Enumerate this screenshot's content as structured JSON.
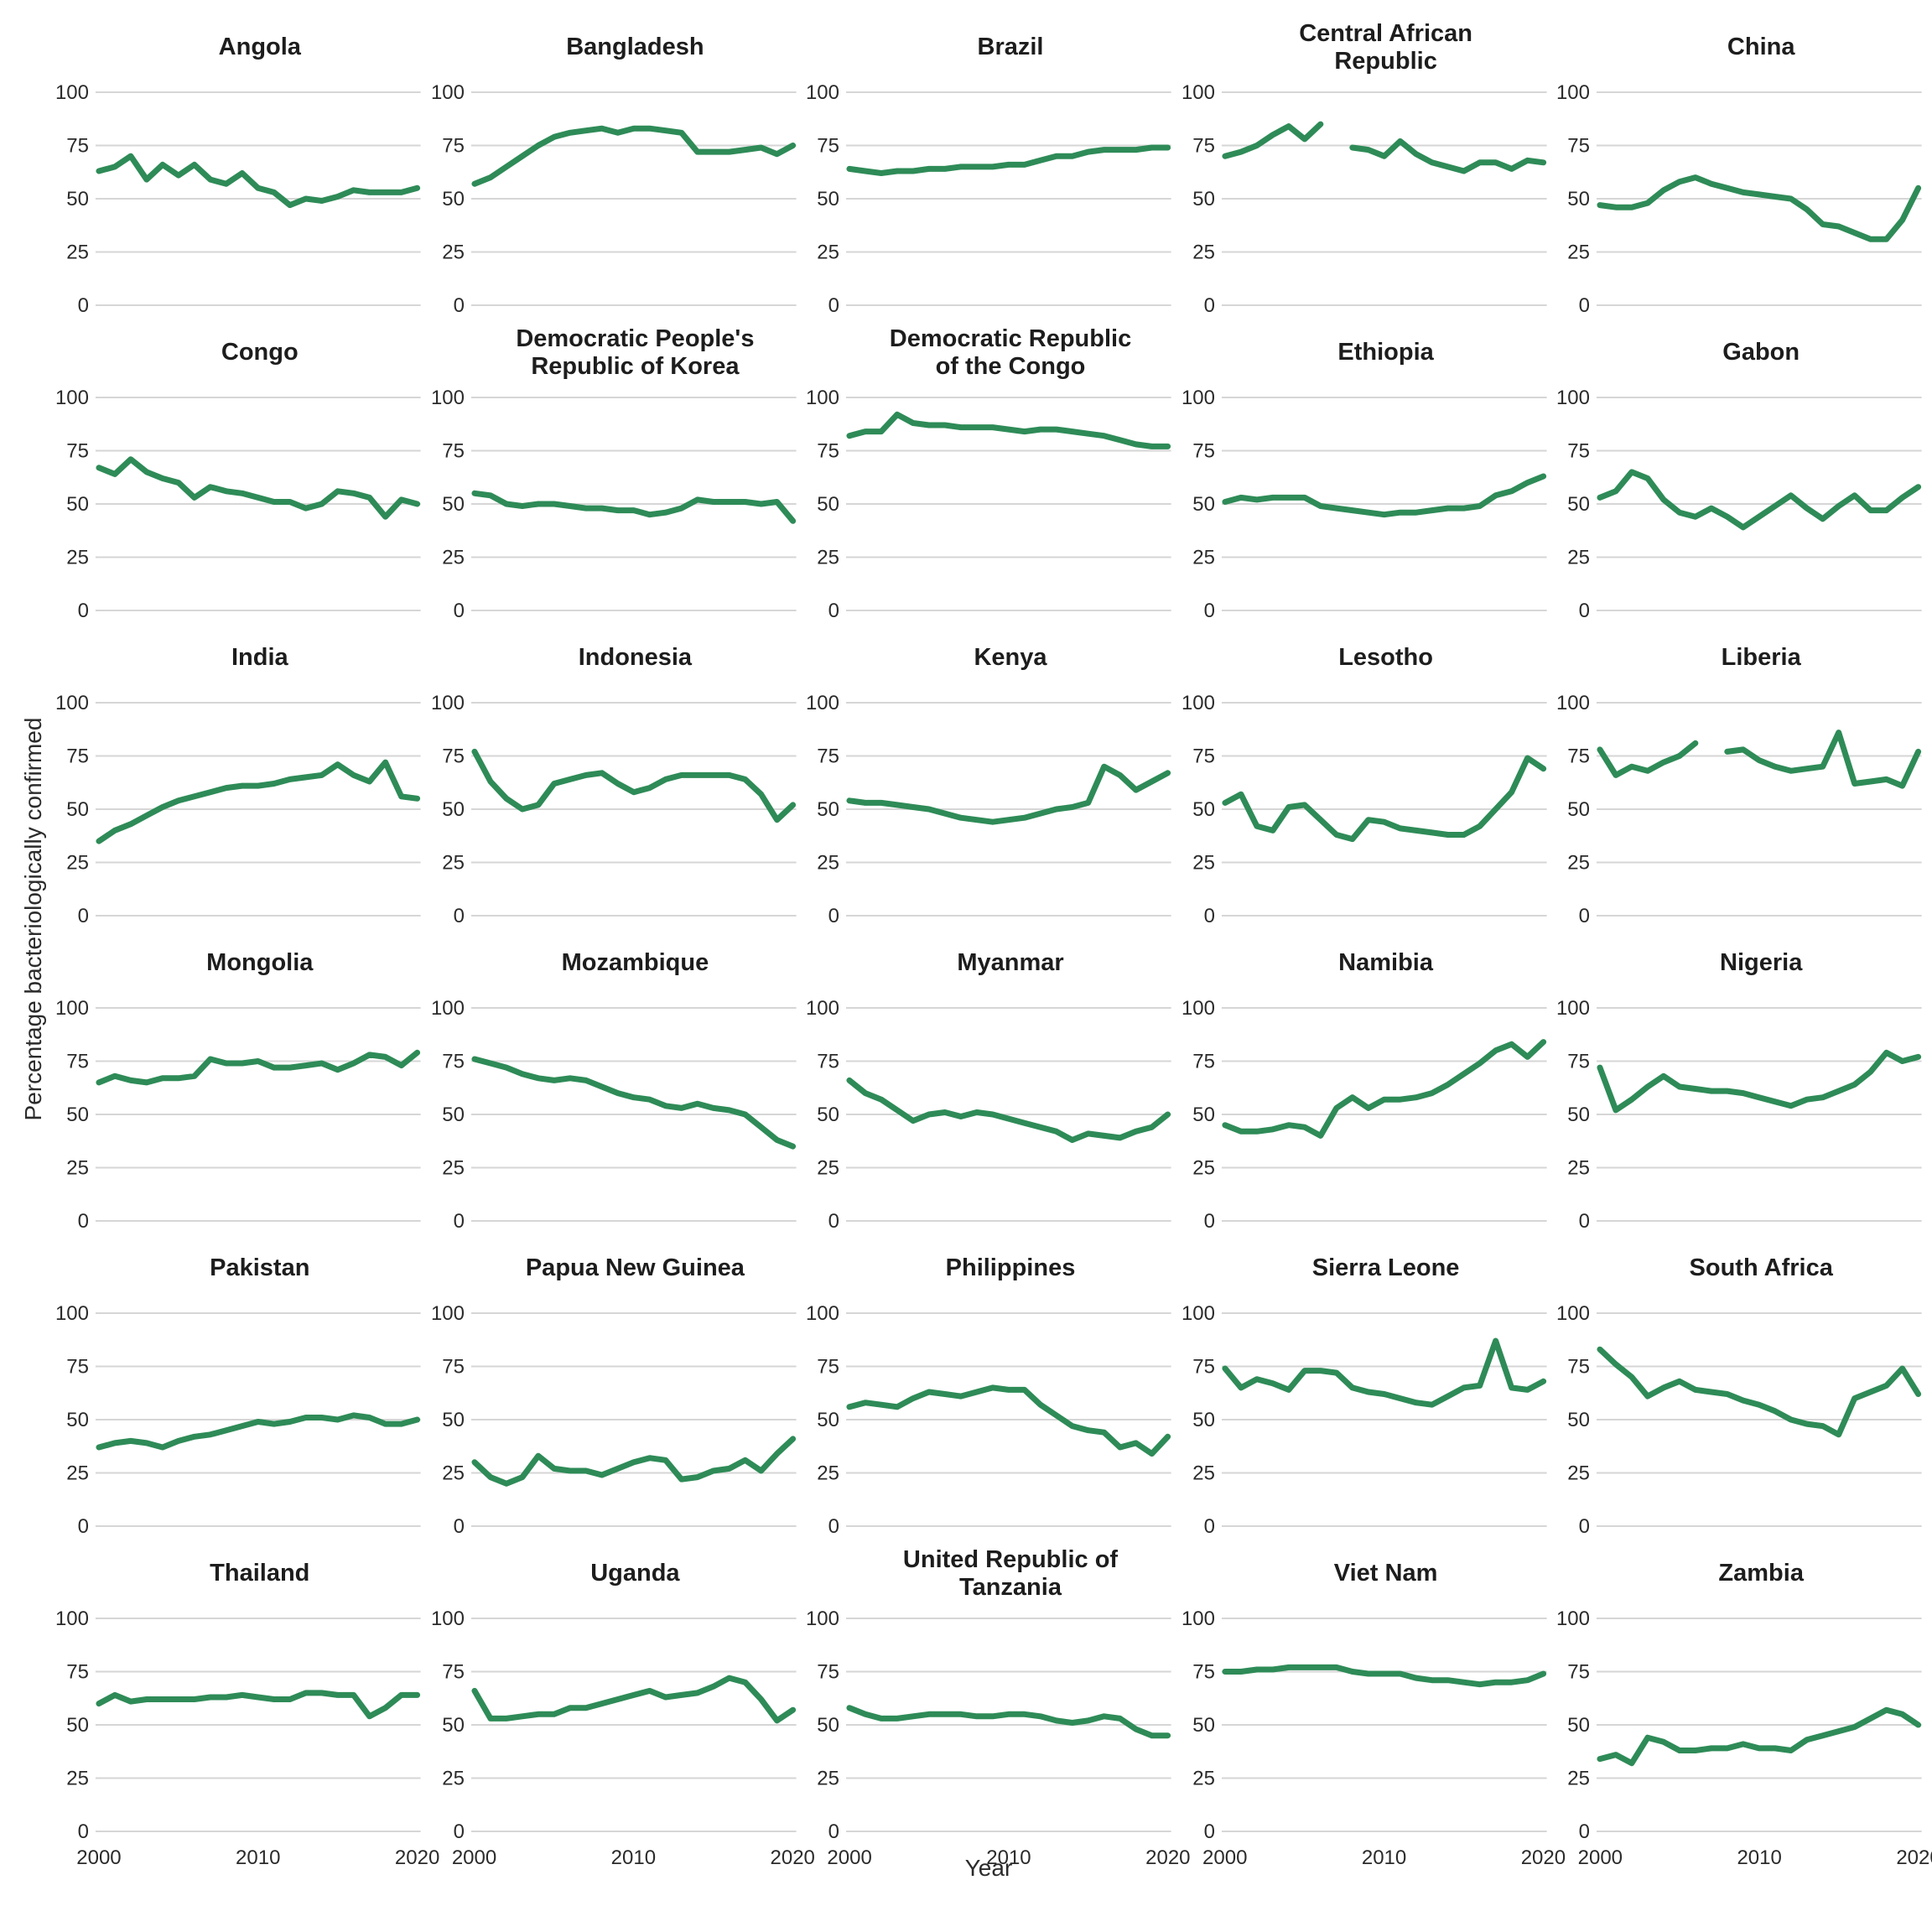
{
  "figure": {
    "ylabel": "Percentage bacteriologically confirmed",
    "xlabel": "Year",
    "line_color": "#2e8b57",
    "grid_color": "#d6d6d6",
    "background": "#ffffff",
    "y_tick_labels": [
      "100",
      "75",
      "50",
      "25",
      "0"
    ],
    "x_tick_labels": [
      "2000",
      "2010",
      "2020"
    ]
  },
  "chart_data": {
    "type": "line",
    "x": [
      2000,
      2001,
      2002,
      2003,
      2004,
      2005,
      2006,
      2007,
      2008,
      2009,
      2010,
      2011,
      2012,
      2013,
      2014,
      2015,
      2016,
      2017,
      2018,
      2019,
      2020
    ],
    "xlabel": "Year",
    "ylabel": "Percentage bacteriologically confirmed",
    "ylim": [
      0,
      100
    ],
    "xlim": [
      2000,
      2020
    ],
    "y_ticks": [
      0,
      25,
      50,
      75,
      100
    ],
    "x_ticks": [
      2000,
      2010,
      2020
    ],
    "grid": "horizontal-only",
    "legend": "none",
    "facets": [
      {
        "title": "Angola",
        "values": [
          63,
          65,
          70,
          59,
          66,
          61,
          66,
          59,
          57,
          62,
          55,
          53,
          47,
          50,
          49,
          51,
          54,
          53,
          53,
          53,
          55
        ]
      },
      {
        "title": "Bangladesh",
        "values": [
          57,
          60,
          65,
          70,
          75,
          79,
          81,
          82,
          83,
          81,
          83,
          83,
          82,
          81,
          72,
          72,
          72,
          73,
          74,
          71,
          75
        ]
      },
      {
        "title": "Brazil",
        "values": [
          64,
          63,
          62,
          63,
          63,
          64,
          64,
          65,
          65,
          65,
          66,
          66,
          68,
          70,
          70,
          72,
          73,
          73,
          73,
          74,
          74
        ]
      },
      {
        "title": "Central African\nRepublic",
        "values": [
          70,
          72,
          75,
          80,
          84,
          78,
          85,
          null,
          74,
          73,
          70,
          77,
          71,
          67,
          65,
          63,
          67,
          67,
          64,
          68,
          67
        ]
      },
      {
        "title": "China",
        "values": [
          47,
          46,
          46,
          48,
          54,
          58,
          60,
          57,
          55,
          53,
          52,
          51,
          50,
          45,
          38,
          37,
          34,
          31,
          31,
          40,
          55
        ]
      },
      {
        "title": "Congo",
        "values": [
          67,
          64,
          71,
          65,
          62,
          60,
          53,
          58,
          56,
          55,
          53,
          51,
          51,
          48,
          50,
          56,
          55,
          53,
          44,
          52,
          50
        ]
      },
      {
        "title": "Democratic People's\nRepublic of Korea",
        "values": [
          55,
          54,
          50,
          49,
          50,
          50,
          49,
          48,
          48,
          47,
          47,
          45,
          46,
          48,
          52,
          51,
          51,
          51,
          50,
          51,
          42
        ]
      },
      {
        "title": "Democratic Republic\nof the Congo",
        "values": [
          82,
          84,
          84,
          92,
          88,
          87,
          87,
          86,
          86,
          86,
          85,
          84,
          85,
          85,
          84,
          83,
          82,
          80,
          78,
          77,
          77
        ]
      },
      {
        "title": "Ethiopia",
        "values": [
          51,
          53,
          52,
          53,
          53,
          53,
          49,
          48,
          47,
          46,
          45,
          46,
          46,
          47,
          48,
          48,
          49,
          54,
          56,
          60,
          63
        ]
      },
      {
        "title": "Gabon",
        "values": [
          53,
          56,
          65,
          62,
          52,
          46,
          44,
          48,
          44,
          39,
          44,
          49,
          54,
          48,
          43,
          49,
          54,
          47,
          47,
          53,
          58
        ]
      },
      {
        "title": "India",
        "values": [
          35,
          40,
          43,
          47,
          51,
          54,
          56,
          58,
          60,
          61,
          61,
          62,
          64,
          65,
          66,
          71,
          66,
          63,
          72,
          56,
          55
        ]
      },
      {
        "title": "Indonesia",
        "values": [
          77,
          63,
          55,
          50,
          52,
          62,
          64,
          66,
          67,
          62,
          58,
          60,
          64,
          66,
          66,
          66,
          66,
          64,
          57,
          45,
          52
        ]
      },
      {
        "title": "Kenya",
        "values": [
          54,
          53,
          53,
          52,
          51,
          50,
          48,
          46,
          45,
          44,
          45,
          46,
          48,
          50,
          51,
          53,
          70,
          66,
          59,
          63,
          67
        ]
      },
      {
        "title": "Lesotho",
        "values": [
          53,
          57,
          42,
          40,
          51,
          52,
          45,
          38,
          36,
          45,
          44,
          41,
          40,
          39,
          38,
          38,
          42,
          50,
          58,
          74,
          69
        ]
      },
      {
        "title": "Liberia",
        "values": [
          78,
          66,
          70,
          68,
          72,
          75,
          81,
          null,
          77,
          78,
          73,
          70,
          68,
          69,
          70,
          86,
          62,
          63,
          64,
          61,
          77
        ]
      },
      {
        "title": "Mongolia",
        "values": [
          65,
          68,
          66,
          65,
          67,
          67,
          68,
          76,
          74,
          74,
          75,
          72,
          72,
          73,
          74,
          71,
          74,
          78,
          77,
          73,
          79
        ]
      },
      {
        "title": "Mozambique",
        "values": [
          76,
          74,
          72,
          69,
          67,
          66,
          67,
          66,
          63,
          60,
          58,
          57,
          54,
          53,
          55,
          53,
          52,
          50,
          44,
          38,
          35
        ]
      },
      {
        "title": "Myanmar",
        "values": [
          66,
          60,
          57,
          52,
          47,
          50,
          51,
          49,
          51,
          50,
          48,
          46,
          44,
          42,
          38,
          41,
          40,
          39,
          42,
          44,
          50
        ]
      },
      {
        "title": "Namibia",
        "values": [
          45,
          42,
          42,
          43,
          45,
          44,
          40,
          53,
          58,
          53,
          57,
          57,
          58,
          60,
          64,
          69,
          74,
          80,
          83,
          77,
          84
        ]
      },
      {
        "title": "Nigeria",
        "values": [
          72,
          52,
          57,
          63,
          68,
          63,
          62,
          61,
          61,
          60,
          58,
          56,
          54,
          57,
          58,
          61,
          64,
          70,
          79,
          75,
          77
        ]
      },
      {
        "title": "Pakistan",
        "values": [
          37,
          39,
          40,
          39,
          37,
          40,
          42,
          43,
          45,
          47,
          49,
          48,
          49,
          51,
          51,
          50,
          52,
          51,
          48,
          48,
          50
        ]
      },
      {
        "title": "Papua New Guinea",
        "values": [
          30,
          23,
          20,
          23,
          33,
          27,
          26,
          26,
          24,
          27,
          30,
          32,
          31,
          22,
          23,
          26,
          27,
          31,
          26,
          34,
          41
        ]
      },
      {
        "title": "Philippines",
        "values": [
          56,
          58,
          57,
          56,
          60,
          63,
          62,
          61,
          63,
          65,
          64,
          64,
          57,
          52,
          47,
          45,
          44,
          37,
          39,
          34,
          42
        ]
      },
      {
        "title": "Sierra Leone",
        "values": [
          74,
          65,
          69,
          67,
          64,
          73,
          73,
          72,
          65,
          63,
          62,
          60,
          58,
          57,
          61,
          65,
          66,
          87,
          65,
          64,
          68
        ]
      },
      {
        "title": "South Africa",
        "values": [
          83,
          76,
          70,
          61,
          65,
          68,
          64,
          63,
          62,
          59,
          57,
          54,
          50,
          48,
          47,
          43,
          60,
          63,
          66,
          74,
          62
        ]
      },
      {
        "title": "Thailand",
        "values": [
          60,
          64,
          61,
          62,
          62,
          62,
          62,
          63,
          63,
          64,
          63,
          62,
          62,
          65,
          65,
          64,
          64,
          54,
          58,
          64,
          64
        ]
      },
      {
        "title": "Uganda",
        "values": [
          66,
          53,
          53,
          54,
          55,
          55,
          58,
          58,
          60,
          62,
          64,
          66,
          63,
          64,
          65,
          68,
          72,
          70,
          62,
          52,
          57
        ]
      },
      {
        "title": "United Republic of\nTanzania",
        "values": [
          58,
          55,
          53,
          53,
          54,
          55,
          55,
          55,
          54,
          54,
          55,
          55,
          54,
          52,
          51,
          52,
          54,
          53,
          48,
          45,
          45
        ]
      },
      {
        "title": "Viet Nam",
        "values": [
          75,
          75,
          76,
          76,
          77,
          77,
          77,
          77,
          75,
          74,
          74,
          74,
          72,
          71,
          71,
          70,
          69,
          70,
          70,
          71,
          74
        ]
      },
      {
        "title": "Zambia",
        "values": [
          34,
          36,
          32,
          44,
          42,
          38,
          38,
          39,
          39,
          41,
          39,
          39,
          38,
          43,
          45,
          47,
          49,
          53,
          57,
          55,
          50
        ]
      }
    ]
  }
}
